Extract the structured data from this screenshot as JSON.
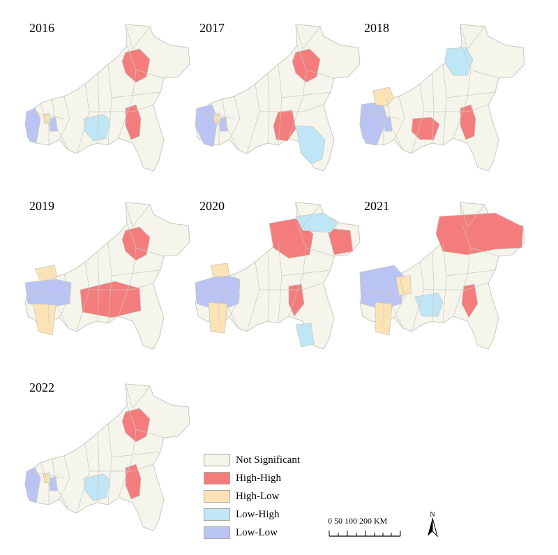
{
  "panels": [
    {
      "year": "2016"
    },
    {
      "year": "2017"
    },
    {
      "year": "2018"
    },
    {
      "year": "2019"
    },
    {
      "year": "2020"
    },
    {
      "year": "2021"
    },
    {
      "year": "2022"
    }
  ],
  "legend": {
    "items": [
      {
        "label": "Not Significant",
        "color": "#f5f5ec"
      },
      {
        "label": "High-High",
        "color": "#f47c7c"
      },
      {
        "label": "High-Low",
        "color": "#fbe3b5"
      },
      {
        "label": "Low-High",
        "color": "#bfe6f7"
      },
      {
        "label": "Low-Low",
        "color": "#b9c4f5"
      }
    ]
  },
  "scale_bar": {
    "labels": "0   50  100          200 KM"
  },
  "north_arrow": {
    "label": "N"
  },
  "colors": {
    "border": "#c8c8c0",
    "background_region": "#f5f5ec"
  }
}
